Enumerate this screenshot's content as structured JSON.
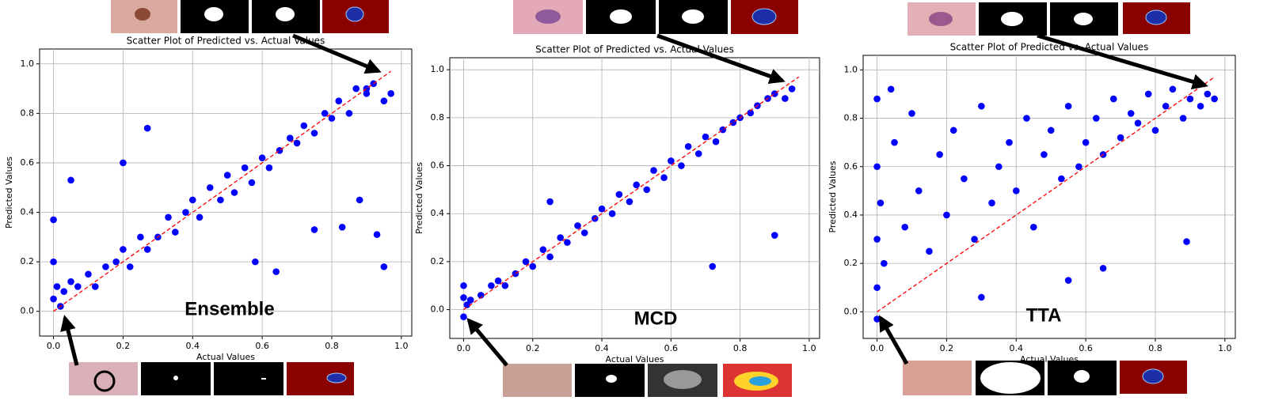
{
  "chart_data": [
    {
      "type": "scatter",
      "title": "Scatter Plot of Predicted vs. Actual Values",
      "xlabel": "Actual Values",
      "ylabel": "Predicted Values",
      "annotation": "Ensemble",
      "color": "#0000ff",
      "x": [
        0,
        0,
        0,
        0.01,
        0.02,
        0.03,
        0.05,
        0.07,
        0.1,
        0.12,
        0.15,
        0.18,
        0.2,
        0.22,
        0.25,
        0.27,
        0.3,
        0.33,
        0.35,
        0.38,
        0.4,
        0.42,
        0.45,
        0.48,
        0.5,
        0.52,
        0.55,
        0.57,
        0.6,
        0.62,
        0.65,
        0.68,
        0.7,
        0.72,
        0.75,
        0.78,
        0.8,
        0.82,
        0.85,
        0.87,
        0.9,
        0.92,
        0.95,
        0.97,
        0.88,
        0.83,
        0.93,
        0.64,
        0.05,
        0.2,
        0.27,
        0.58,
        0.75,
        0.9,
        0.95
      ],
      "y": [
        0.05,
        0.2,
        0.37,
        0.1,
        0.02,
        0.08,
        0.12,
        0.1,
        0.15,
        0.1,
        0.18,
        0.2,
        0.25,
        0.18,
        0.3,
        0.25,
        0.3,
        0.38,
        0.32,
        0.4,
        0.45,
        0.38,
        0.5,
        0.45,
        0.55,
        0.48,
        0.58,
        0.52,
        0.62,
        0.58,
        0.65,
        0.7,
        0.68,
        0.75,
        0.72,
        0.8,
        0.78,
        0.85,
        0.8,
        0.9,
        0.88,
        0.92,
        0.85,
        0.88,
        0.45,
        0.34,
        0.31,
        0.16,
        0.53,
        0.6,
        0.74,
        0.2,
        0.33,
        0.9,
        0.18
      ],
      "reference_line": {
        "x": [
          0,
          0.97
        ],
        "y": [
          0,
          0.97
        ],
        "color": "#ff0000"
      },
      "xlim": [
        -0.04,
        1.03
      ],
      "ylim": [
        -0.1,
        1.06
      ],
      "xticks": [
        {
          "value": 0,
          "label": "0.0"
        },
        0.2,
        0.4,
        0.6,
        0.8,
        {
          "value": 1,
          "label": "1.0"
        }
      ],
      "yticks": [
        {
          "value": 0,
          "label": "0.0"
        },
        0.2,
        0.4,
        0.6,
        0.8,
        {
          "value": 1,
          "label": "1.0"
        }
      ],
      "grid": true
    },
    {
      "type": "scatter",
      "title": "Scatter Plot of Predicted vs. Actual Values",
      "xlabel": "Actual Values",
      "ylabel": "Predicted Values",
      "annotation": "MCD",
      "color": "#0000ff",
      "x": [
        0,
        0,
        0,
        0.01,
        0.02,
        0.05,
        0.08,
        0.1,
        0.12,
        0.15,
        0.18,
        0.2,
        0.23,
        0.25,
        0.28,
        0.3,
        0.33,
        0.35,
        0.38,
        0.4,
        0.43,
        0.45,
        0.48,
        0.5,
        0.53,
        0.55,
        0.58,
        0.6,
        0.63,
        0.65,
        0.68,
        0.7,
        0.73,
        0.75,
        0.78,
        0.8,
        0.83,
        0.85,
        0.88,
        0.9,
        0.93,
        0.95,
        0.25,
        0.9,
        0.72
      ],
      "y": [
        -0.03,
        0.05,
        0.1,
        0.02,
        0.04,
        0.06,
        0.1,
        0.12,
        0.1,
        0.15,
        0.2,
        0.18,
        0.25,
        0.22,
        0.3,
        0.28,
        0.35,
        0.32,
        0.38,
        0.42,
        0.4,
        0.48,
        0.45,
        0.52,
        0.5,
        0.58,
        0.55,
        0.62,
        0.6,
        0.68,
        0.65,
        0.72,
        0.7,
        0.75,
        0.78,
        0.8,
        0.82,
        0.85,
        0.88,
        0.9,
        0.88,
        0.92,
        0.45,
        0.31,
        0.18
      ],
      "reference_line": {
        "x": [
          0,
          0.97
        ],
        "y": [
          0,
          0.97
        ],
        "color": "#ff0000"
      },
      "xlim": [
        -0.04,
        1.03
      ],
      "ylim": [
        -0.12,
        1.05
      ],
      "xticks": [
        {
          "value": 0,
          "label": "0.0"
        },
        0.2,
        0.4,
        0.6,
        0.8,
        {
          "value": 1,
          "label": "1.0"
        }
      ],
      "yticks": [
        {
          "value": 0,
          "label": "0.0"
        },
        0.2,
        0.4,
        0.6,
        0.8,
        {
          "value": 1,
          "label": "1.0"
        }
      ],
      "grid": true
    },
    {
      "type": "scatter",
      "title": "Scatter Plot of Predicted vs. Actual Values",
      "xlabel": "Actual Values",
      "ylabel": "Predicted Values",
      "annotation": "TTA",
      "color": "#0000ff",
      "x": [
        0,
        0,
        0,
        0,
        0,
        0.01,
        0.02,
        0.05,
        0.08,
        0.1,
        0.12,
        0.15,
        0.18,
        0.2,
        0.22,
        0.25,
        0.28,
        0.3,
        0.33,
        0.35,
        0.38,
        0.4,
        0.43,
        0.45,
        0.48,
        0.5,
        0.53,
        0.55,
        0.58,
        0.6,
        0.63,
        0.65,
        0.68,
        0.7,
        0.73,
        0.75,
        0.78,
        0.8,
        0.83,
        0.85,
        0.88,
        0.9,
        0.93,
        0.95,
        0.97,
        0.04,
        0.3,
        0.55,
        0.89,
        0.65
      ],
      "y": [
        -0.03,
        0.1,
        0.3,
        0.6,
        0.88,
        0.45,
        0.2,
        0.7,
        0.35,
        0.82,
        0.5,
        0.25,
        0.65,
        0.4,
        0.75,
        0.55,
        0.3,
        0.85,
        0.45,
        0.6,
        0.7,
        0.5,
        0.8,
        0.35,
        0.65,
        0.75,
        0.55,
        0.85,
        0.6,
        0.7,
        0.8,
        0.65,
        0.88,
        0.72,
        0.82,
        0.78,
        0.9,
        0.75,
        0.85,
        0.92,
        0.8,
        0.88,
        0.85,
        0.9,
        0.88,
        0.92,
        0.06,
        0.13,
        0.29,
        0.18
      ],
      "reference_line": {
        "x": [
          0,
          0.97
        ],
        "y": [
          0,
          0.97
        ],
        "color": "#ff0000"
      },
      "xlim": [
        -0.04,
        1.03
      ],
      "ylim": [
        -0.11,
        1.06
      ],
      "xticks": [
        {
          "value": 0,
          "label": "0.0"
        },
        0.2,
        0.4,
        0.6,
        0.8,
        {
          "value": 1,
          "label": "1.0"
        }
      ],
      "yticks": [
        {
          "value": 0,
          "label": "0.0"
        },
        0.2,
        0.4,
        0.6,
        0.8,
        {
          "value": 1,
          "label": "1.0"
        }
      ],
      "grid": true
    }
  ]
}
